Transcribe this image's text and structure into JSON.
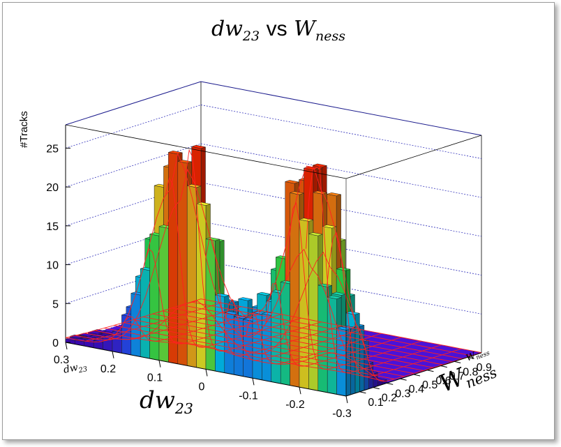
{
  "chart_data": {
    "type": "lego3d",
    "title": {
      "var": "dw",
      "var_sub": "23",
      "connector": "vs",
      "var2": "W",
      "var2_sub": "ness"
    },
    "xlabel": {
      "var": "dw",
      "sub": "23"
    },
    "ylabel": {
      "var": "W",
      "sub": "ness"
    },
    "zlabel": "#Tracks",
    "x_ticks": [
      "0.3",
      "0.2",
      "0.1",
      "0",
      "-0.1",
      "-0.2",
      "-0.3"
    ],
    "x_corner_label": {
      "var": "dw",
      "sub": "23"
    },
    "y_ticks": [
      "0.1",
      "0.2",
      "0.3",
      "0.4",
      "0.5",
      "0.6",
      "0.7",
      "0.8",
      "0.9"
    ],
    "y_corner_label": {
      "var": "W",
      "sub": "ness"
    },
    "z_ticks": [
      "0",
      "5",
      "10",
      "15",
      "20",
      "25"
    ],
    "xlim": [
      0.3,
      -0.3
    ],
    "ylim": [
      0.0,
      1.0
    ],
    "zlim": [
      0,
      28
    ],
    "grid": true,
    "palette": "rainbow",
    "fit_overlay": "red mesh surface",
    "peaks": [
      {
        "dw23": 0.07,
        "w_ness": 0.03,
        "tracks": 24
      },
      {
        "dw23": -0.22,
        "w_ness": 0.07,
        "tracks": 25
      }
    ]
  },
  "colors": {
    "frame": "#1a1a8c",
    "grid": "#3333bb",
    "fit": "#ff2020",
    "floor": "#3a00c8"
  }
}
